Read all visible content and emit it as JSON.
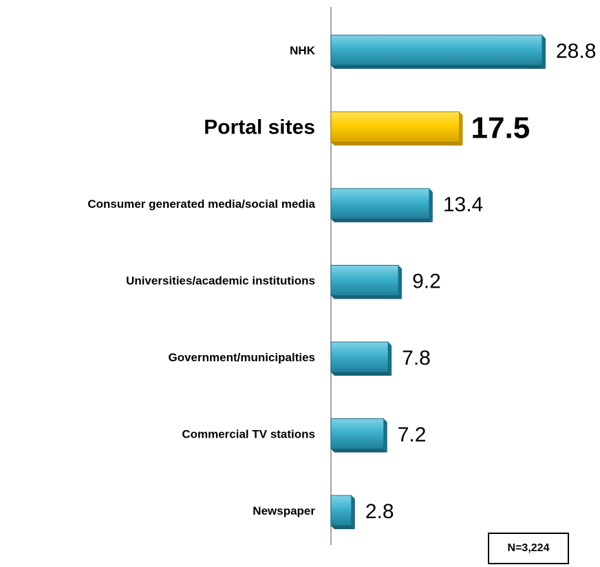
{
  "chart_data": {
    "type": "bar",
    "orientation": "horizontal",
    "categories": [
      "NHK",
      "Portal sites",
      "Consumer generated media/social  media",
      "Universities/academic  institutions",
      "Government/municipalties",
      "Commercial TV stations",
      "Newspaper"
    ],
    "values": [
      28.8,
      17.5,
      13.4,
      9.2,
      7.8,
      7.2,
      2.8
    ],
    "value_labels": [
      "28.8",
      "17.5",
      "13.4",
      "9.2",
      "7.8",
      "7.2",
      "2.8"
    ],
    "highlight_index": 1,
    "xlim": [
      0,
      28.8
    ],
    "grid": false,
    "colors": {
      "bar": "#3cb0cc",
      "highlight": "#ffcc00"
    }
  },
  "note": {
    "sample_size": "N=3,224"
  }
}
